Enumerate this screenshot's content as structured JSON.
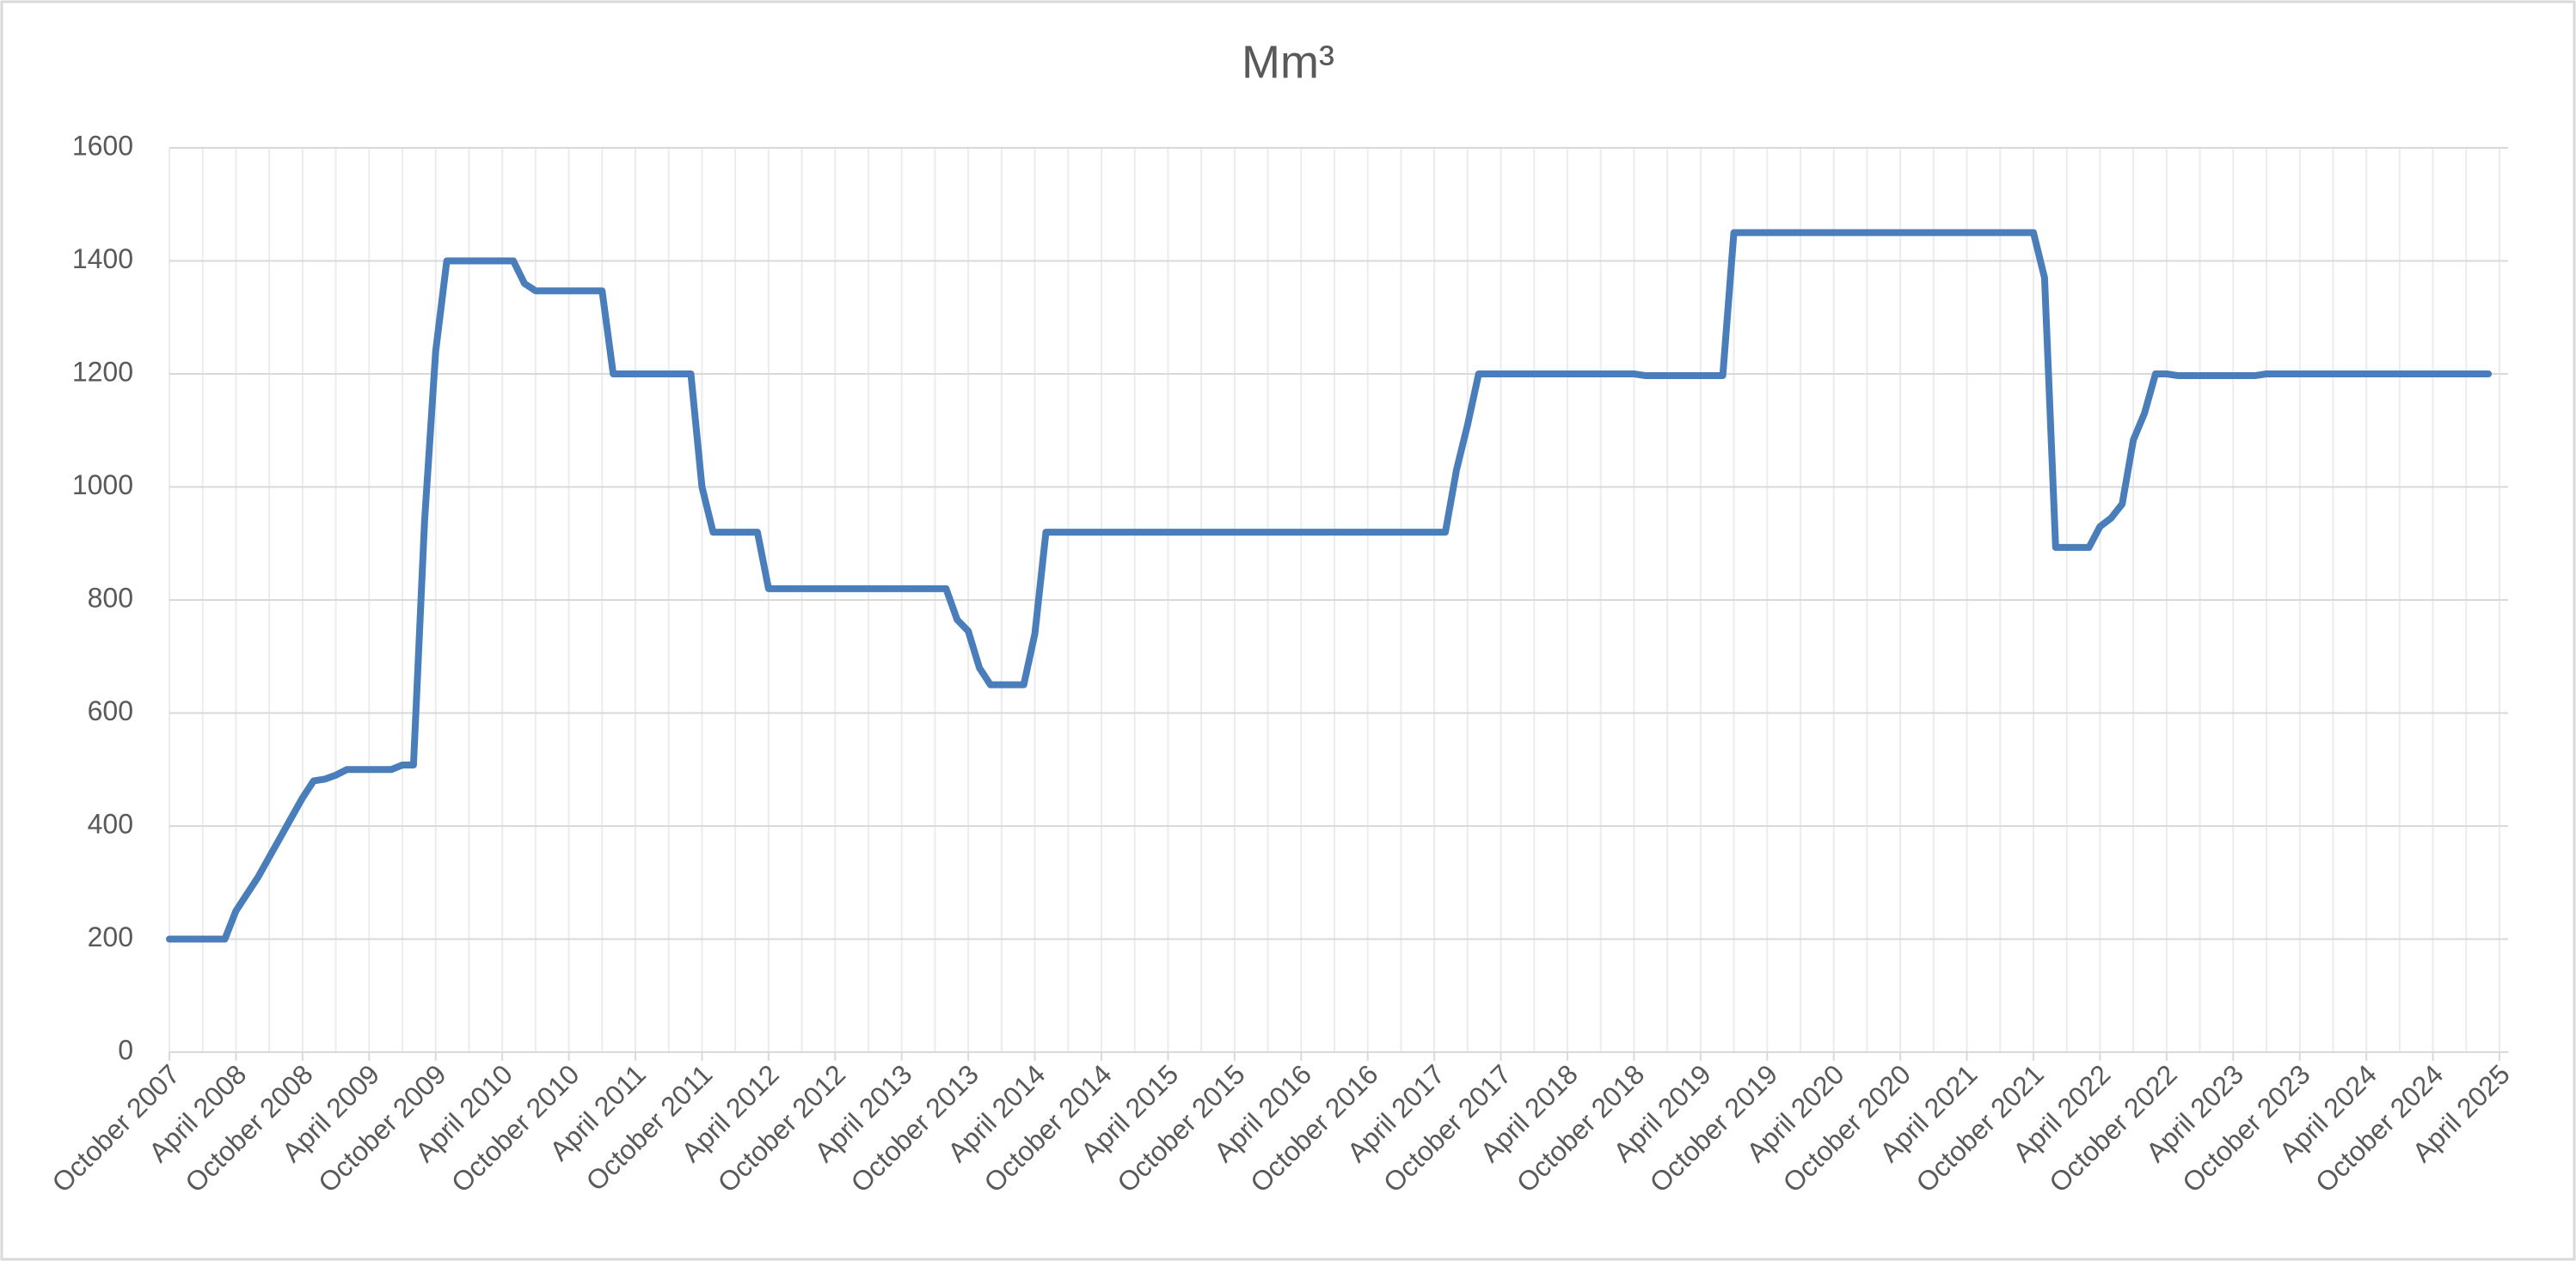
{
  "chart_data": {
    "type": "line",
    "title": "Mm³",
    "categories": [
      "October 2007",
      null,
      null,
      null,
      null,
      null,
      "April 2008",
      null,
      null,
      null,
      null,
      null,
      "October 2008",
      null,
      null,
      null,
      null,
      null,
      "April 2009",
      null,
      null,
      null,
      null,
      null,
      "October 2009",
      null,
      null,
      null,
      null,
      null,
      "April 2010",
      null,
      null,
      null,
      null,
      null,
      "October 2010",
      null,
      null,
      null,
      null,
      null,
      "April 2011",
      null,
      null,
      null,
      null,
      null,
      "October 2011",
      null,
      null,
      null,
      null,
      null,
      "April 2012",
      null,
      null,
      null,
      null,
      null,
      "October 2012",
      null,
      null,
      null,
      null,
      null,
      "April 2013",
      null,
      null,
      null,
      null,
      null,
      "October 2013",
      null,
      null,
      null,
      null,
      null,
      "April 2014",
      null,
      null,
      null,
      null,
      null,
      "October 2014",
      null,
      null,
      null,
      null,
      null,
      "April 2015",
      null,
      null,
      null,
      null,
      null,
      "October 2015",
      null,
      null,
      null,
      null,
      null,
      "April 2016",
      null,
      null,
      null,
      null,
      null,
      "October 2016",
      null,
      null,
      null,
      null,
      null,
      "April 2017",
      null,
      null,
      null,
      null,
      null,
      "October 2017",
      null,
      null,
      null,
      null,
      null,
      "April 2018",
      null,
      null,
      null,
      null,
      null,
      "October 2018",
      null,
      null,
      null,
      null,
      null,
      "April 2019",
      null,
      null,
      null,
      null,
      null,
      "October 2019",
      null,
      null,
      null,
      null,
      null,
      "April 2020",
      null,
      null,
      null,
      null,
      null,
      "October 2020",
      null,
      null,
      null,
      null,
      null,
      "April 2021",
      null,
      null,
      null,
      null,
      null,
      "October 2021",
      null,
      null,
      null,
      null,
      null,
      "April 2022",
      null,
      null,
      null,
      null,
      null,
      "October 2022",
      null,
      null,
      null,
      null,
      null,
      "April 2023",
      null,
      null,
      null,
      null,
      null,
      "October 2023",
      null,
      null,
      null,
      null,
      null,
      "April 2024",
      null,
      null,
      null,
      null,
      null,
      "October 2024",
      null,
      null,
      null,
      null,
      null,
      "April 2025"
    ],
    "values": [
      200,
      200,
      200,
      200,
      200,
      200,
      250,
      280,
      310,
      345,
      380,
      415,
      450,
      480,
      483,
      490,
      500,
      500,
      500,
      500,
      500,
      508,
      508,
      940,
      1240,
      1400,
      1400,
      1400,
      1400,
      1400,
      1400,
      1400,
      1360,
      1347,
      1347,
      1347,
      1347,
      1347,
      1347,
      1347,
      1200,
      1200,
      1200,
      1200,
      1200,
      1200,
      1200,
      1200,
      1000,
      920,
      920,
      920,
      920,
      920,
      820,
      820,
      820,
      820,
      820,
      820,
      820,
      820,
      820,
      820,
      820,
      820,
      820,
      820,
      820,
      820,
      820,
      765,
      745,
      680,
      650,
      650,
      650,
      650,
      740,
      920,
      920,
      920,
      920,
      920,
      920,
      920,
      920,
      920,
      920,
      920,
      920,
      920,
      920,
      920,
      920,
      920,
      920,
      920,
      920,
      920,
      920,
      920,
      920,
      920,
      920,
      920,
      920,
      920,
      920,
      920,
      920,
      920,
      920,
      920,
      920,
      920,
      1030,
      1110,
      1200,
      1200,
      1200,
      1200,
      1200,
      1200,
      1200,
      1200,
      1200,
      1200,
      1200,
      1200,
      1200,
      1200,
      1200,
      1197,
      1197,
      1197,
      1197,
      1197,
      1197,
      1197,
      1197,
      1450,
      1450,
      1450,
      1450,
      1450,
      1450,
      1450,
      1450,
      1450,
      1450,
      1450,
      1450,
      1450,
      1450,
      1450,
      1450,
      1450,
      1450,
      1450,
      1450,
      1450,
      1450,
      1450,
      1450,
      1450,
      1450,
      1450,
      1450,
      1370,
      893,
      893,
      893,
      893,
      930,
      945,
      970,
      1083,
      1130,
      1200,
      1200,
      1197,
      1197,
      1197,
      1197,
      1197,
      1197,
      1197,
      1197,
      1200,
      1200,
      1200,
      1200,
      1200,
      1200,
      1200,
      1200,
      1200,
      1200,
      1200,
      1200,
      1200,
      1200,
      1200,
      1200,
      1200,
      1200,
      1200,
      1200,
      1200,
      null
    ],
    "color": "#4a7ebb",
    "ylim": [
      0,
      1600
    ],
    "yticks": [
      0,
      200,
      400,
      600,
      800,
      1000,
      1200,
      1400,
      1600
    ],
    "grid": true
  }
}
